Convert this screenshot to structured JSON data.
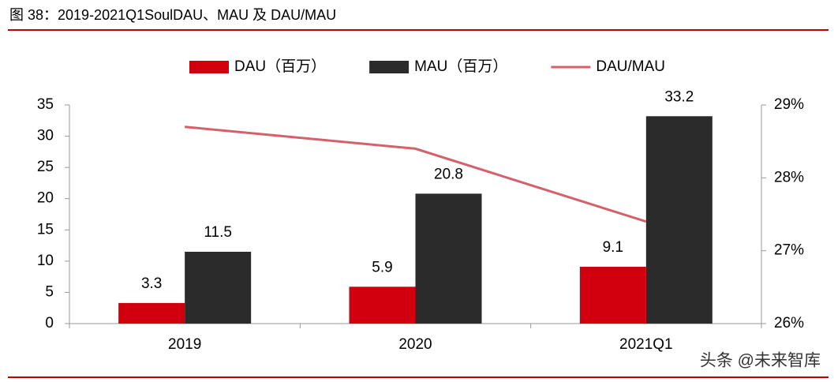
{
  "chart_data": {
    "type": "bar",
    "title": "图 38：2019-2021Q1SoulDAU、MAU 及 DAU/MAU",
    "categories": [
      "2019",
      "2020",
      "2021Q1"
    ],
    "series": [
      {
        "name": "DAU（百万）",
        "color": "#d0000f",
        "type": "bar",
        "values": [
          3.3,
          5.9,
          9.1
        ]
      },
      {
        "name": "MAU（百万）",
        "color": "#2b2b2b",
        "type": "bar",
        "values": [
          11.5,
          20.8,
          33.2
        ]
      },
      {
        "name": "DAU/MAU",
        "color": "#d4606a",
        "type": "line",
        "axis": "y2",
        "values": [
          28.7,
          28.4,
          27.4
        ]
      }
    ],
    "ylim": [
      0,
      35
    ],
    "yticks": [
      0,
      5,
      10,
      15,
      20,
      25,
      30,
      35
    ],
    "y2lim": [
      26,
      29
    ],
    "y2ticks": [
      {
        "value": 26,
        "label": "26%"
      },
      {
        "value": 27,
        "label": "27%"
      },
      {
        "value": 28,
        "label": "28%"
      },
      {
        "value": 29,
        "label": "29%"
      }
    ],
    "legend": "top",
    "data_labels": true,
    "watermark": "头条 @未来智库"
  }
}
